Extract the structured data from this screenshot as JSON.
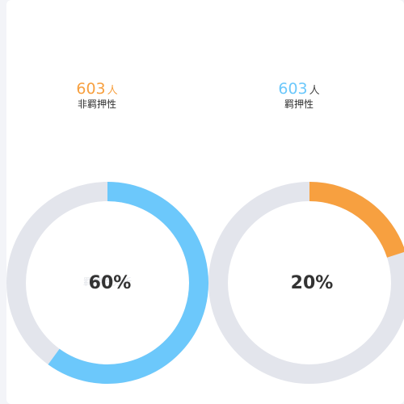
{
  "stats": [
    {
      "value": "603",
      "unit": "人",
      "label": "非羁押性"
    },
    {
      "value": "603",
      "unit": "人",
      "label": "羁押性"
    }
  ],
  "chart_data": [
    {
      "type": "pie",
      "values": [
        60,
        40
      ],
      "center_label": "60%",
      "colors": [
        "#6cc8fb",
        "#e3e5ec"
      ]
    },
    {
      "type": "pie",
      "values": [
        20,
        80
      ],
      "center_label": "20%",
      "colors": [
        "#f7a040",
        "#e3e5ec"
      ]
    }
  ]
}
